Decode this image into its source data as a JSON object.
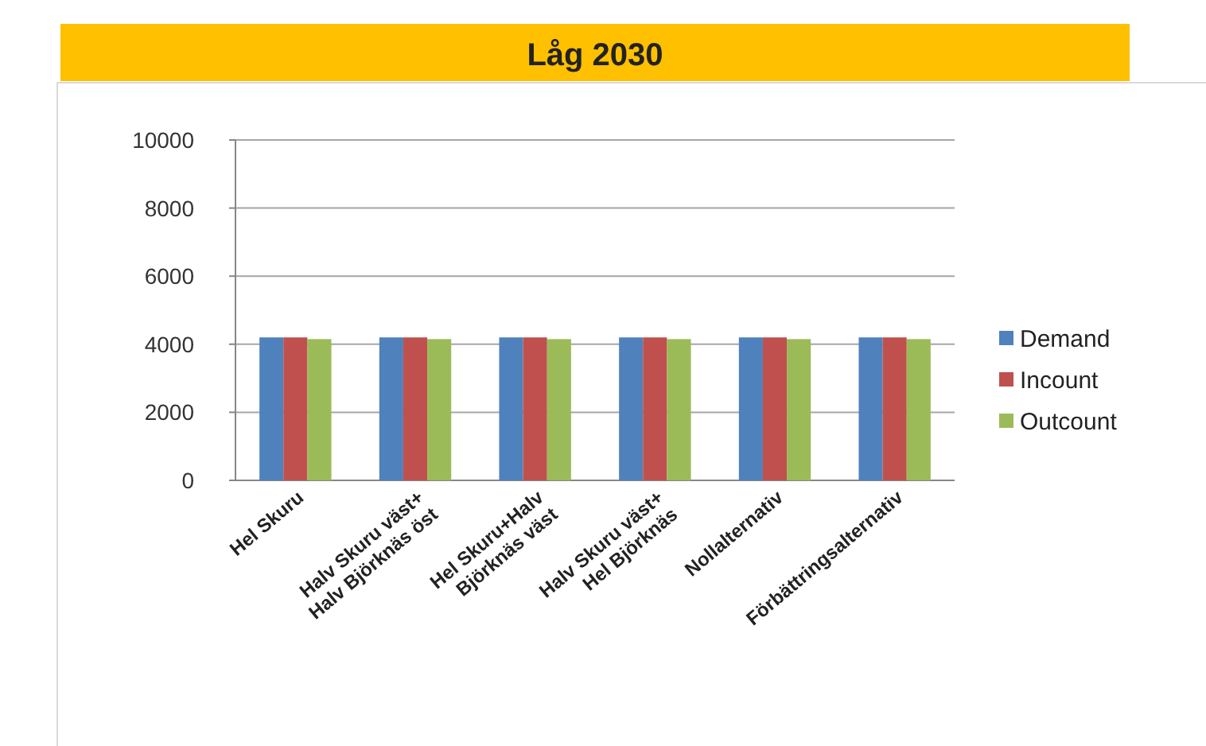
{
  "chart_data": {
    "type": "bar",
    "title": "Låg 2030",
    "categories": [
      "Hel Skuru",
      "Halv Skuru väst+\nHalv Björknäs öst",
      "Hel Skuru+Halv\nBjörknäs väst",
      "Halv Skuru väst+\nHel Björknäs",
      "Nollalternativ",
      "Förbättringsalternativ"
    ],
    "series": [
      {
        "name": "Demand",
        "color": "#4f81bd",
        "values": [
          4200,
          4200,
          4200,
          4200,
          4200,
          4200
        ]
      },
      {
        "name": "Incount",
        "color": "#c0504d",
        "values": [
          4200,
          4200,
          4200,
          4200,
          4200,
          4200
        ]
      },
      {
        "name": "Outcount",
        "color": "#9bbb59",
        "values": [
          4150,
          4150,
          4150,
          4150,
          4150,
          4150
        ]
      }
    ],
    "ylim": [
      0,
      10000
    ],
    "yticks": [
      0,
      2000,
      4000,
      6000,
      8000,
      10000
    ],
    "grid": "y",
    "legend": "right"
  }
}
